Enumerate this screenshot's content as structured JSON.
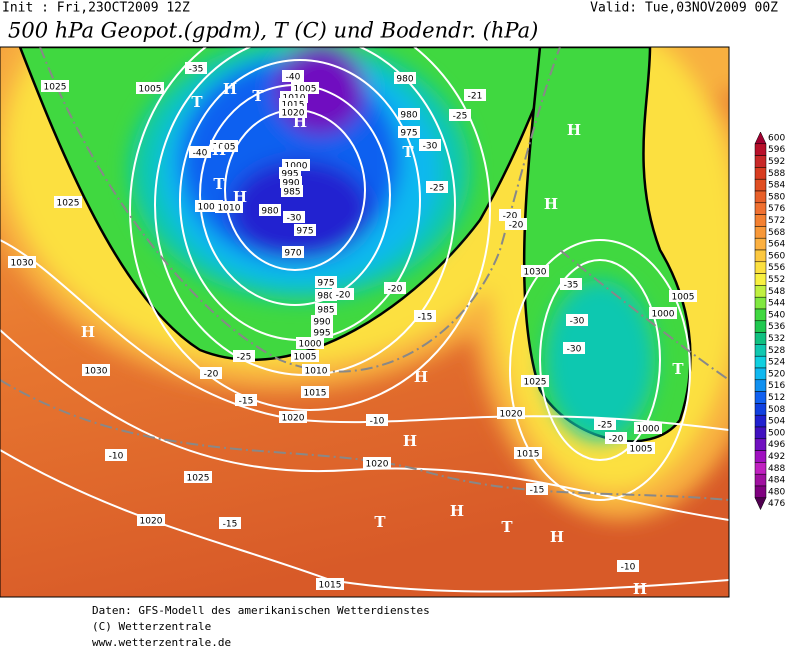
{
  "header": {
    "init": "Init : Fri,23OCT2009 12Z",
    "valid": "Valid: Tue,03NOV2009 00Z",
    "title": "500 hPa Geopot.(gpdm), T (C) und Bodendr. (hPa)"
  },
  "map": {
    "labels": [
      "1025",
      "1005",
      "-35",
      "-40",
      "1005",
      "1010",
      "1015",
      "1020",
      "980",
      "-21",
      "980",
      "-25",
      "975",
      "-30",
      "-40",
      "1005",
      "1000",
      "995",
      "990",
      "985",
      "1025",
      "1005",
      "1010",
      "980",
      "-30",
      "975",
      "970",
      "-25",
      "-20",
      "-20",
      "1030",
      "975",
      "980",
      "-20",
      "985",
      "990",
      "995",
      "1000",
      "1005",
      "1010",
      "-25",
      "-20",
      "1015",
      "-15",
      "1030",
      "1020",
      "-10",
      "1020",
      "1015",
      "-10",
      "1025",
      "1020",
      "-15",
      "1020",
      "-15",
      "1015",
      "-10",
      "1030",
      "-35",
      "-30",
      "-30",
      "1025",
      "1005",
      "1000",
      "-25",
      "-20",
      "1000",
      "1005",
      "-20",
      "-15"
    ],
    "markers": [
      "T",
      "H",
      "T",
      "H",
      "T",
      "H",
      "H",
      "T",
      "H",
      "H",
      "H",
      "H",
      "H",
      "T",
      "H",
      "T",
      "H",
      "T",
      "H"
    ]
  },
  "colorbar": [
    {
      "value": 600,
      "color": "#a00030"
    },
    {
      "value": 596,
      "color": "#b8102a"
    },
    {
      "value": 592,
      "color": "#c82828"
    },
    {
      "value": 588,
      "color": "#d83c20"
    },
    {
      "value": 584,
      "color": "#e04e22"
    },
    {
      "value": 580,
      "color": "#e8602a"
    },
    {
      "value": 576,
      "color": "#f07030"
    },
    {
      "value": 572,
      "color": "#f48030"
    },
    {
      "value": 568,
      "color": "#f89838"
    },
    {
      "value": 564,
      "color": "#fcb040"
    },
    {
      "value": 560,
      "color": "#fcc840"
    },
    {
      "value": 556,
      "color": "#fce040"
    },
    {
      "value": 552,
      "color": "#f8f040"
    },
    {
      "value": 548,
      "color": "#c0f040"
    },
    {
      "value": 544,
      "color": "#80e840"
    },
    {
      "value": 540,
      "color": "#40d840"
    },
    {
      "value": 536,
      "color": "#20c850"
    },
    {
      "value": 532,
      "color": "#10c080"
    },
    {
      "value": 528,
      "color": "#10c8b0"
    },
    {
      "value": 524,
      "color": "#10d0e0"
    },
    {
      "value": 520,
      "color": "#10b8f0"
    },
    {
      "value": 516,
      "color": "#1090f0"
    },
    {
      "value": 512,
      "color": "#1060f0"
    },
    {
      "value": 508,
      "color": "#1040e0"
    },
    {
      "value": 504,
      "color": "#2020d0"
    },
    {
      "value": 500,
      "color": "#4010c0"
    },
    {
      "value": 496,
      "color": "#7010c0"
    },
    {
      "value": 492,
      "color": "#a010c0"
    },
    {
      "value": 488,
      "color": "#c020c0"
    },
    {
      "value": 484,
      "color": "#a010a0"
    },
    {
      "value": 480,
      "color": "#800080"
    },
    {
      "value": 476,
      "color": "#500050"
    }
  ],
  "footer": [
    "Daten: GFS-Modell des amerikanischen Wetterdienstes",
    "(C) Wetterzentrale",
    "www.wetterzentrale.de"
  ]
}
